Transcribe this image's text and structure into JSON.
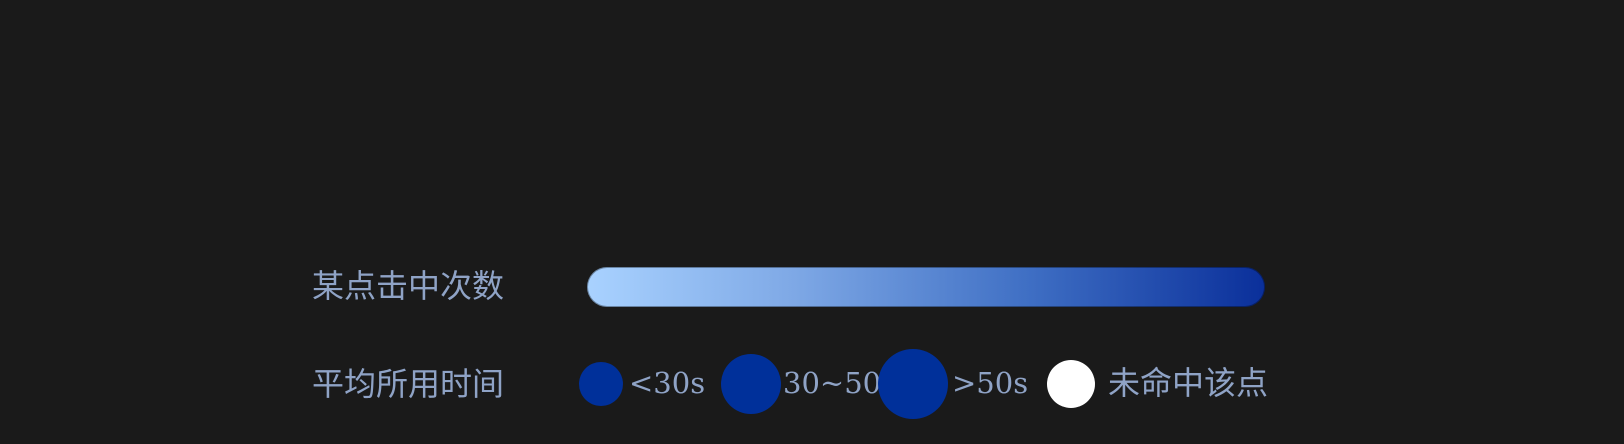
{
  "legend": {
    "hits_label": "某点击中次数",
    "time_label": "平均所用时间",
    "gradient": {
      "start_color": "#a9d2ff",
      "end_color": "#0a2f9a"
    },
    "categories": [
      {
        "label": "<30s",
        "color": "#00309a"
      },
      {
        "label": "30~50s",
        "color": "#00309a"
      },
      {
        "label": ">50s",
        "color": "#00309a"
      },
      {
        "label": "未命中该点",
        "color": "#ffffff"
      }
    ]
  }
}
